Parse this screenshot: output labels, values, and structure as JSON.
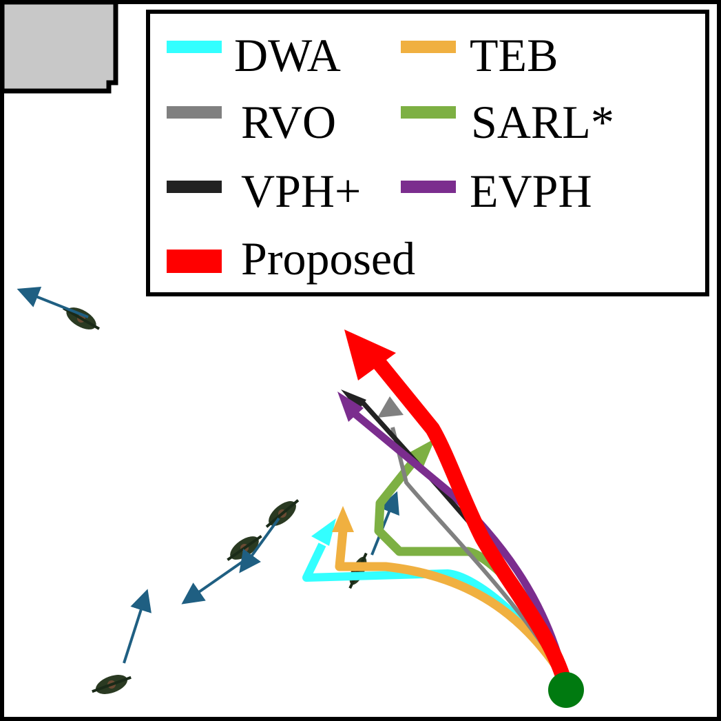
{
  "legend": {
    "items": [
      {
        "label": "DWA",
        "color": "#33FFFF"
      },
      {
        "label": "TEB",
        "color": "#F0B040"
      },
      {
        "label": "RVO",
        "color": "#808080"
      },
      {
        "label": "SARL*",
        "color": "#7DB043"
      },
      {
        "label": "VPH+",
        "color": "#222222"
      },
      {
        "label": "EVPH",
        "color": "#7B2D8E"
      },
      {
        "label": "Proposed",
        "color": "#FF0000"
      }
    ]
  },
  "colors": {
    "obstacle_fill": "#C8C8C8",
    "robot_start": "#007A10",
    "pedestrian_arrow": "#1F5F82",
    "pedestrian_body": "#2A3A22",
    "frame": "#000000"
  },
  "icons": {
    "pedestrian": "pedestrian-icon",
    "robot": "robot-start-icon",
    "obstacle": "obstacle-block"
  }
}
